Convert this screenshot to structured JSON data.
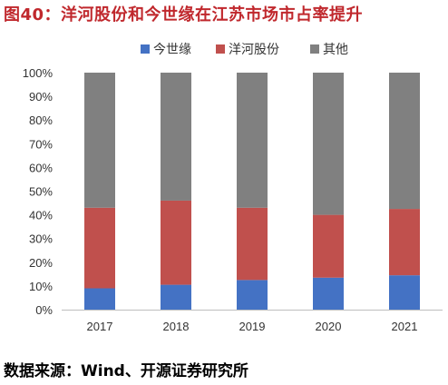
{
  "figure_title": "图40：洋河股份和今世缘在江苏市场市占率提升",
  "source_note": "数据来源：Wind、开源证券研究所",
  "chart_data": {
    "type": "bar",
    "stacked": true,
    "categories": [
      "2017",
      "2018",
      "2019",
      "2020",
      "2021"
    ],
    "series": [
      {
        "name": "今世缘",
        "color": "#4472c4",
        "values": [
          9,
          10.5,
          12.5,
          13.5,
          14.5
        ]
      },
      {
        "name": "洋河股份",
        "color": "#c0504d",
        "values": [
          34,
          35.5,
          30.5,
          26.5,
          28
        ]
      },
      {
        "name": "其他",
        "color": "#808080",
        "values": [
          57,
          54,
          57,
          60,
          57.5
        ]
      }
    ],
    "ylim": [
      0,
      100
    ],
    "y_ticks": [
      "0%",
      "10%",
      "20%",
      "30%",
      "40%",
      "50%",
      "60%",
      "70%",
      "80%",
      "90%",
      "100%"
    ],
    "legend_position": "top",
    "grid": false
  }
}
